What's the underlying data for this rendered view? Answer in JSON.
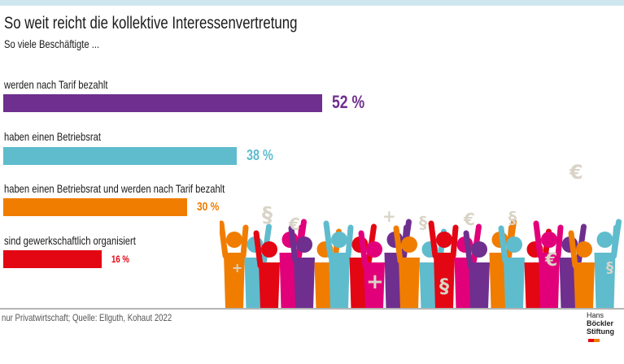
{
  "header": {
    "title": "So weit reicht die kollektive Interessenvertretung",
    "subtitle": "So viele Beschäftigte ..."
  },
  "chart_data": {
    "type": "bar",
    "orientation": "horizontal",
    "categories": [
      "werden nach Tarif bezahlt",
      "haben einen Betriebsrat",
      "haben einen Betriebsrat und werden nach Tarif bezahlt",
      "sind gewerkschaftlich organisiert"
    ],
    "values": [
      52,
      38,
      30,
      16
    ],
    "value_labels": [
      "52 %",
      "38 %",
      "30 %",
      "16 %"
    ],
    "colors": [
      "#6f2f8f",
      "#5fbccd",
      "#f07d00",
      "#e30613"
    ],
    "unit": "%",
    "xlim": [
      0,
      100
    ],
    "grid": false,
    "legend": "none"
  },
  "illustration": {
    "palette": [
      "#f07d00",
      "#e30613",
      "#6f2f8f",
      "#5fbccd",
      "#e2007a"
    ],
    "symbol_color": "#d9d4c7",
    "symbols": [
      "§",
      "€",
      "+",
      "§",
      "€",
      "§",
      "€",
      "+"
    ]
  },
  "footer": {
    "source": "nur Privatwirtschaft; Quelle: Ellguth, Kohaut 2022",
    "logo_line1_light": "Hans",
    "logo_line1_bold": "Böckler",
    "logo_line2": "Stiftung"
  }
}
